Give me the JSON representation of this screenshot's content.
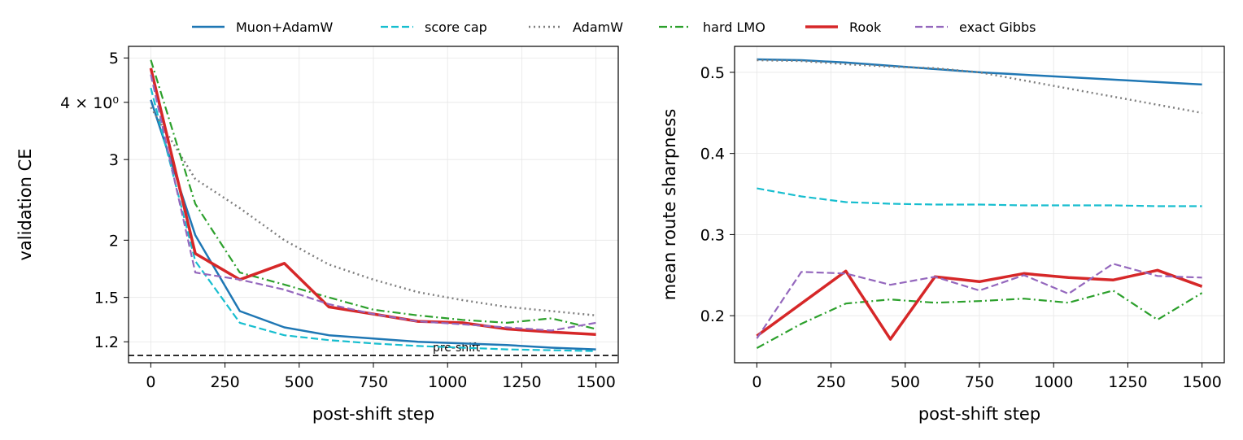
{
  "legend": [
    {
      "name": "Muon+AdamW",
      "color": "#1f77b4",
      "dash": "solid",
      "width": 2.5
    },
    {
      "name": "score cap",
      "color": "#17becf",
      "dash": "dashed",
      "width": 2.2
    },
    {
      "name": "AdamW",
      "color": "#7f7f7f",
      "dash": "dotted",
      "width": 2.5
    },
    {
      "name": "hard LMO",
      "color": "#2ca02c",
      "dash": "dashdot",
      "width": 2.2
    },
    {
      "name": "Rook",
      "color": "#d62728",
      "dash": "solid",
      "width": 3.5
    },
    {
      "name": "exact Gibbs",
      "color": "#9467bd",
      "dash": "dashed",
      "width": 2.2
    }
  ],
  "chart_data": [
    {
      "type": "line",
      "xlabel": "post-shift step",
      "ylabel": "validation CE",
      "yscale": "log",
      "xlim": [
        -75,
        1575
      ],
      "ylim": [
        1.08,
        5.3
      ],
      "xticks": [
        0,
        250,
        500,
        750,
        1000,
        1250,
        1500
      ],
      "yticks": [
        {
          "value": 1.2,
          "label": "1.2"
        },
        {
          "value": 1.5,
          "label": "1.5"
        },
        {
          "value": 2,
          "label": "2"
        },
        {
          "value": 3,
          "label": "3"
        },
        {
          "value": 4,
          "label": "4 × 10⁰"
        },
        {
          "value": 5,
          "label": "5"
        }
      ],
      "grid": true,
      "reference_line": {
        "y": 1.12,
        "label": "pre-shift",
        "style": "dashed",
        "color": "#000000"
      },
      "x": [
        0,
        150,
        300,
        450,
        600,
        750,
        900,
        1050,
        1200,
        1350,
        1500
      ],
      "series": [
        {
          "name": "Muon+AdamW",
          "values": [
            4.05,
            2.05,
            1.4,
            1.29,
            1.24,
            1.22,
            1.2,
            1.19,
            1.18,
            1.165,
            1.155
          ]
        },
        {
          "name": "score cap",
          "values": [
            4.3,
            1.8,
            1.32,
            1.24,
            1.21,
            1.19,
            1.175,
            1.165,
            1.155,
            1.15,
            1.145
          ]
        },
        {
          "name": "AdamW",
          "values": [
            3.9,
            2.72,
            2.35,
            2.0,
            1.77,
            1.64,
            1.54,
            1.48,
            1.43,
            1.4,
            1.37
          ]
        },
        {
          "name": "hard LMO",
          "values": [
            4.95,
            2.4,
            1.7,
            1.6,
            1.5,
            1.41,
            1.37,
            1.34,
            1.32,
            1.35,
            1.28
          ]
        },
        {
          "name": "Rook",
          "values": [
            4.75,
            1.87,
            1.64,
            1.78,
            1.43,
            1.38,
            1.33,
            1.32,
            1.28,
            1.26,
            1.245
          ]
        },
        {
          "name": "exact Gibbs",
          "values": [
            4.6,
            1.7,
            1.64,
            1.56,
            1.45,
            1.38,
            1.33,
            1.31,
            1.29,
            1.27,
            1.32
          ]
        }
      ]
    },
    {
      "type": "line",
      "xlabel": "post-shift step",
      "ylabel": "mean route sharpness",
      "yscale": "linear",
      "xlim": [
        -75,
        1575
      ],
      "ylim": [
        0.142,
        0.532
      ],
      "xticks": [
        0,
        250,
        500,
        750,
        1000,
        1250,
        1500
      ],
      "yticks": [
        {
          "value": 0.2,
          "label": "0.2"
        },
        {
          "value": 0.3,
          "label": "0.3"
        },
        {
          "value": 0.4,
          "label": "0.4"
        },
        {
          "value": 0.5,
          "label": "0.5"
        }
      ],
      "grid": true,
      "x": [
        0,
        150,
        300,
        450,
        600,
        750,
        900,
        1050,
        1200,
        1350,
        1500
      ],
      "series": [
        {
          "name": "Muon+AdamW",
          "values": [
            0.516,
            0.515,
            0.512,
            0.508,
            0.504,
            0.5,
            0.497,
            0.494,
            0.491,
            0.488,
            0.485
          ]
        },
        {
          "name": "score cap",
          "values": [
            0.357,
            0.347,
            0.34,
            0.338,
            0.337,
            0.337,
            0.336,
            0.336,
            0.336,
            0.335,
            0.335
          ]
        },
        {
          "name": "AdamW",
          "values": [
            0.515,
            0.514,
            0.51,
            0.507,
            0.505,
            0.5,
            0.49,
            0.48,
            0.47,
            0.46,
            0.45
          ]
        },
        {
          "name": "hard LMO",
          "values": [
            0.16,
            0.19,
            0.215,
            0.22,
            0.216,
            0.218,
            0.221,
            0.216,
            0.231,
            0.195,
            0.228
          ]
        },
        {
          "name": "Rook",
          "values": [
            0.175,
            0.215,
            0.255,
            0.171,
            0.248,
            0.242,
            0.252,
            0.247,
            0.244,
            0.256,
            0.236
          ]
        },
        {
          "name": "exact Gibbs",
          "values": [
            0.172,
            0.254,
            0.252,
            0.238,
            0.248,
            0.231,
            0.25,
            0.227,
            0.264,
            0.249,
            0.247
          ]
        }
      ]
    }
  ]
}
